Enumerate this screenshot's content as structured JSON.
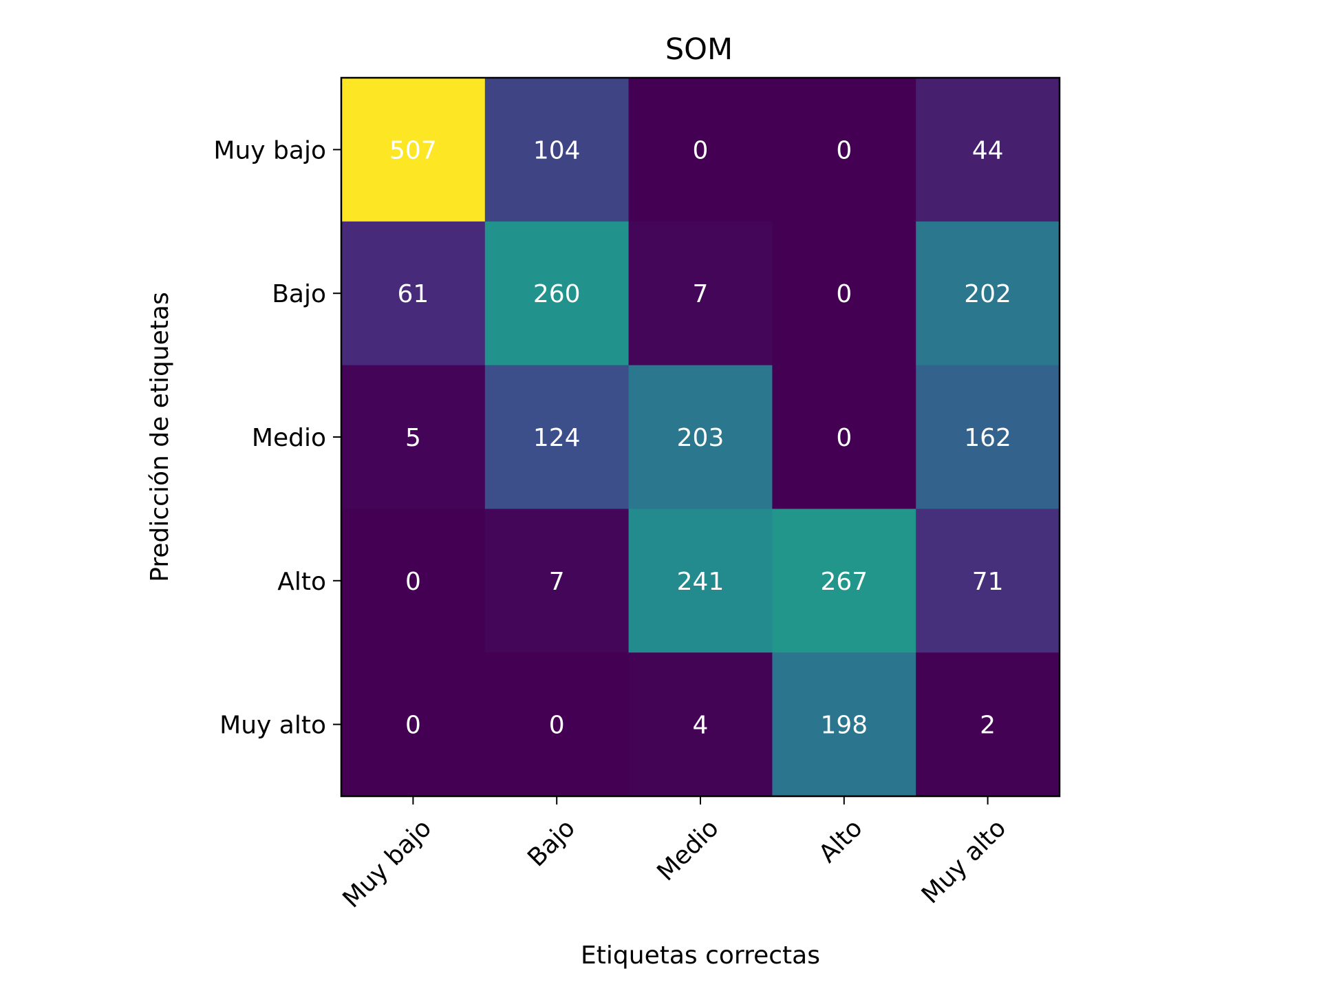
{
  "chart_data": {
    "type": "heatmap",
    "title": "SOM",
    "xlabel": "Etiquetas correctas",
    "ylabel": "Predicción de etiquetas",
    "x_categories": [
      "Muy bajo",
      "Bajo",
      "Medio",
      "Alto",
      "Muy alto"
    ],
    "y_categories": [
      "Muy bajo",
      "Bajo",
      "Medio",
      "Alto",
      "Muy alto"
    ],
    "values": [
      [
        507,
        104,
        0,
        0,
        44
      ],
      [
        61,
        260,
        7,
        0,
        202
      ],
      [
        5,
        124,
        203,
        0,
        162
      ],
      [
        0,
        7,
        241,
        267,
        71
      ],
      [
        0,
        0,
        4,
        198,
        2
      ]
    ],
    "colormap": "viridis",
    "value_range": [
      0,
      507
    ],
    "grid": false,
    "legend": "none"
  }
}
